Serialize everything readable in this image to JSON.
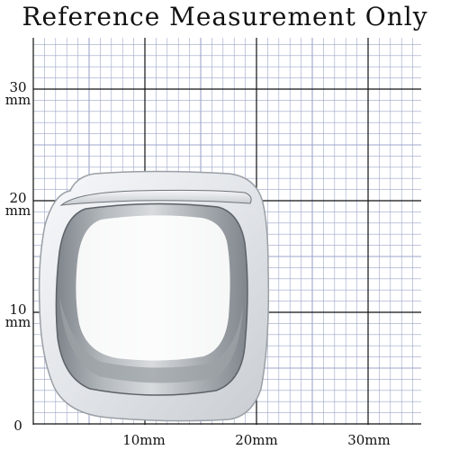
{
  "title": "Reference Measurement Only",
  "scale": {
    "y_labels": [
      {
        "value": "30",
        "unit": "mm"
      },
      {
        "value": "20",
        "unit": "mm"
      },
      {
        "value": "10",
        "unit": "mm"
      },
      {
        "value": "0",
        "unit": ""
      }
    ],
    "x_labels": [
      "10mm",
      "20mm",
      "30mm"
    ]
  },
  "colors": {
    "minor_grid": "#9da6c9",
    "major_grid": "#111111",
    "ring_metal": "#e9ecef",
    "ring_shadow": "#8f949a",
    "text": "#111111"
  },
  "object": {
    "name": "ring-product-photo"
  }
}
